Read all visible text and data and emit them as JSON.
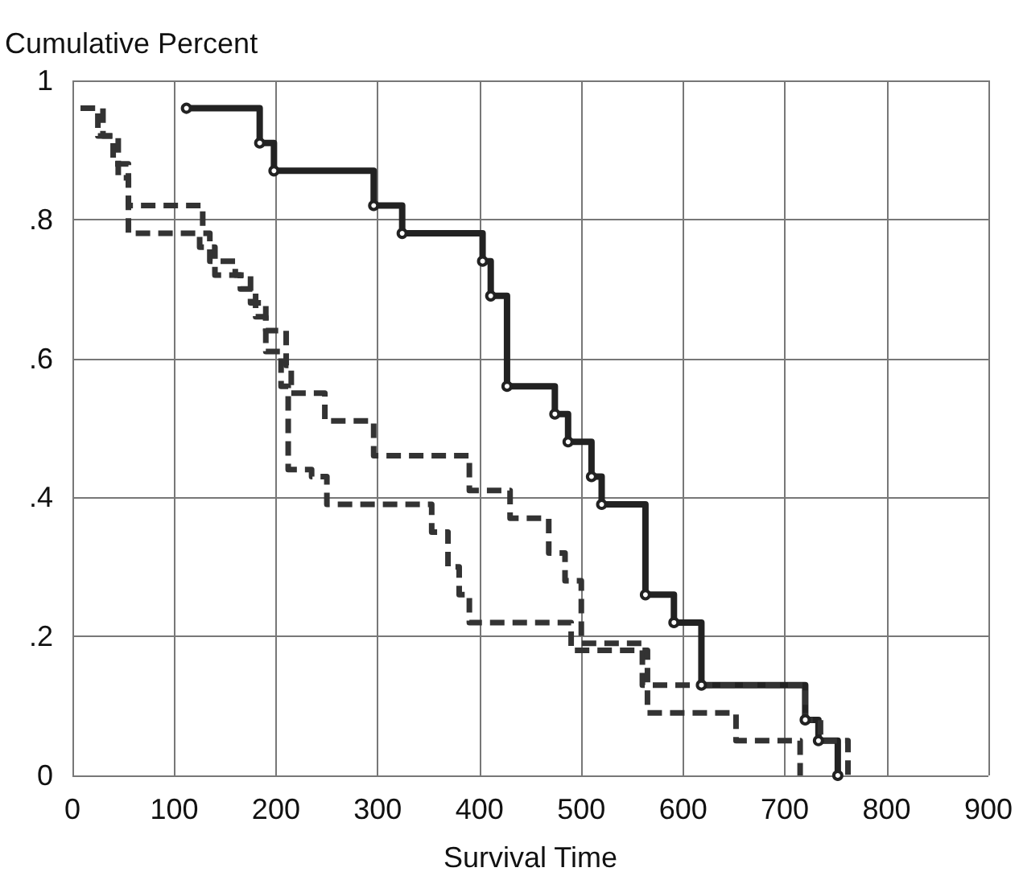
{
  "chart_data": {
    "type": "step",
    "xlabel": "Survival Time",
    "ylabel": "Cumulative Percent",
    "xlim": [
      0,
      900
    ],
    "xticks": [
      0,
      100,
      200,
      300,
      400,
      500,
      600,
      700,
      800,
      900
    ],
    "ylim": [
      0,
      1
    ],
    "yticks": [
      {
        "value": 0,
        "label": "0"
      },
      {
        "value": 0.2,
        "label": ".2"
      },
      {
        "value": 0.4,
        "label": ".4"
      },
      {
        "value": 0.6,
        "label": ".6"
      },
      {
        "value": 0.8,
        "label": ".8"
      },
      {
        "value": 1,
        "label": "1"
      }
    ],
    "grid": true,
    "series": [
      {
        "color": "#222222",
        "line_style": "solid",
        "marker": "circle",
        "x": [
          112,
          184,
          198,
          296,
          324,
          403,
          411,
          427,
          474,
          487,
          510,
          520,
          563,
          591,
          618,
          720,
          733,
          752
        ],
        "values": [
          0.96,
          0.91,
          0.87,
          0.82,
          0.78,
          0.74,
          0.69,
          0.56,
          0.52,
          0.48,
          0.43,
          0.39,
          0.26,
          0.22,
          0.13,
          0.08,
          0.05,
          0
        ]
      },
      {
        "color": "#333333",
        "line_style": "dashed",
        "marker": "none",
        "x": [
          8,
          25,
          40,
          55,
          128,
          135,
          160,
          175,
          190,
          210,
          215,
          248,
          296,
          390,
          430,
          468,
          484,
          500,
          560,
          720,
          735,
          762
        ],
        "values": [
          0.96,
          0.92,
          0.88,
          0.82,
          0.78,
          0.74,
          0.72,
          0.68,
          0.64,
          0.59,
          0.55,
          0.51,
          0.46,
          0.41,
          0.37,
          0.32,
          0.28,
          0.19,
          0.13,
          0.08,
          0.05,
          0
        ]
      },
      {
        "color": "#333333",
        "line_style": "dashed",
        "marker": "none",
        "x": [
          8,
          30,
          45,
          55,
          125,
          140,
          165,
          180,
          190,
          205,
          212,
          235,
          250,
          353,
          369,
          380,
          390,
          490,
          565,
          652,
          715
        ],
        "values": [
          0.96,
          0.92,
          0.86,
          0.78,
          0.76,
          0.72,
          0.7,
          0.66,
          0.61,
          0.56,
          0.44,
          0.43,
          0.39,
          0.35,
          0.3,
          0.26,
          0.22,
          0.18,
          0.09,
          0.05,
          0
        ]
      }
    ]
  }
}
